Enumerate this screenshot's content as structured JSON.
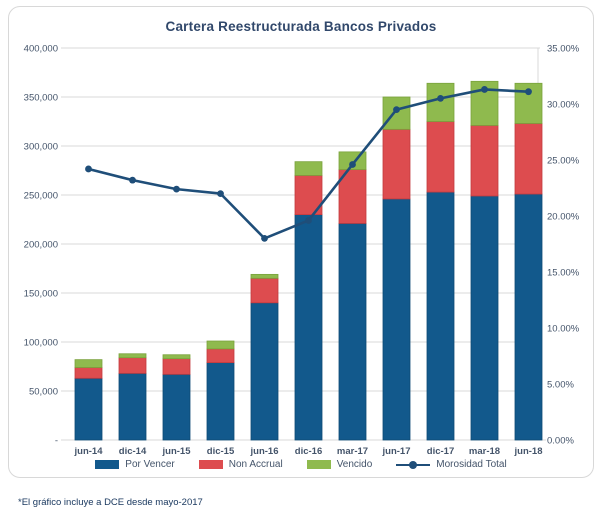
{
  "footnote": "*El gráfico incluye a DCE desde mayo-2017",
  "chart_data": {
    "type": "bar",
    "subtype": "stacked-bars-with-line-overlay",
    "title": "Cartera Reestructurada Bancos Privados",
    "categories": [
      "jun-14",
      "dic-14",
      "jun-15",
      "dic-15",
      "jun-16",
      "dic-16",
      "mar-17",
      "jun-17",
      "dic-17",
      "mar-18",
      "jun-18"
    ],
    "series": [
      {
        "name": "Por Vencer",
        "color": "#12598c",
        "edge": "#0d4a75",
        "values": [
          63000,
          68000,
          67000,
          79000,
          140000,
          230000,
          221000,
          246000,
          253000,
          249000,
          251000
        ]
      },
      {
        "name": "Non Accrual",
        "color": "#dd4c4f",
        "edge": "#c43b3e",
        "values": [
          11000,
          16000,
          16000,
          14000,
          25000,
          40000,
          55000,
          71000,
          72000,
          72000,
          72000
        ]
      },
      {
        "name": "Vencido",
        "color": "#8fba4e",
        "edge": "#7aa33d",
        "values": [
          8000,
          4000,
          4000,
          8000,
          4000,
          14000,
          18000,
          33000,
          39000,
          45000,
          41000
        ]
      }
    ],
    "line": {
      "name": "Morosidad Total",
      "color": "#1f4e79",
      "values": [
        24.2,
        23.2,
        22.4,
        22.0,
        18.0,
        19.6,
        24.6,
        29.5,
        30.5,
        31.3,
        31.1
      ]
    },
    "left_axis": {
      "min": 0,
      "max": 400000,
      "step": 50000,
      "tick_labels": [
        "400,000",
        "350,000",
        "300,000",
        "250,000",
        "200,000",
        "150,000",
        "100,000",
        "50,000",
        "-"
      ]
    },
    "right_axis": {
      "min": 0,
      "max": 35,
      "step": 5,
      "tick_labels": [
        "35.00%",
        "30.00%",
        "25.00%",
        "20.00%",
        "15.00%",
        "10.00%",
        "5.00%",
        "0.00%"
      ]
    },
    "grid": true,
    "grid_color": "#d9d9d9",
    "axis_text_color": "#44546a",
    "legend_position": "bottom"
  }
}
